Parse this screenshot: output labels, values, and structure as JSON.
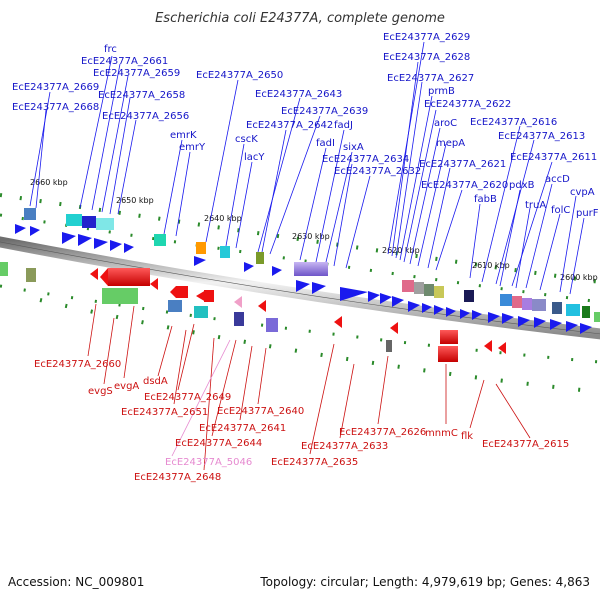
{
  "title": "Escherichia coli E24377A, complete genome",
  "footer": {
    "accession": "Accession: NC_009801",
    "summary": "Topology: circular; Length: 4,979,619 bp; Genes: 4,863"
  },
  "colors": {
    "forward": "#1515c8",
    "reverse": "#cc1111",
    "pseudo": "#e68ad0",
    "tick_green": "#2a8a2a"
  },
  "position_ticks": [
    "2660 kbp",
    "2650 kbp",
    "2640 kbp",
    "2630 kbp",
    "2620 kbp",
    "2610 kbp",
    "2600 kbp"
  ],
  "forward_genes": [
    "frc",
    "EcE24377A_2661",
    "EcE24377A_2659",
    "EcE24377A_2669",
    "EcE24377A_2658",
    "EcE24377A_2668",
    "EcE24377A_2656",
    "EcE24377A_2650",
    "emrK",
    "emrY",
    "cscK",
    "lacY",
    "EcE24377A_2643",
    "EcE24377A_2639",
    "EcE24377A_2642",
    "fadJ",
    "fadI",
    "sixA",
    "EcE24377A_2634",
    "EcE24377A_2632",
    "EcE24377A_2629",
    "EcE24377A_2628",
    "EcE24377A_2627",
    "prmB",
    "EcE24377A_2622",
    "aroC",
    "mepA",
    "EcE24377A_2621",
    "EcE24377A_2620",
    "fabB",
    "EcE24377A_2616",
    "EcE24377A_2613",
    "EcE24377A_2611",
    "pdxB",
    "accD",
    "truA",
    "cvpA",
    "folC",
    "purF"
  ],
  "reverse_genes": [
    "EcE24377A_2660",
    "evgS",
    "evgA",
    "dsdA",
    "EcE24377A_2649",
    "EcE24377A_2651",
    "EcE24377A_2640",
    "EcE24377A_2641",
    "EcE24377A_2644",
    "EcE24377A_5046",
    "EcE24377A_2648",
    "EcE24377A_2635",
    "EcE24377A_2633",
    "EcE24377A_2626",
    "mnmC",
    "flk",
    "EcE24377A_2615"
  ]
}
